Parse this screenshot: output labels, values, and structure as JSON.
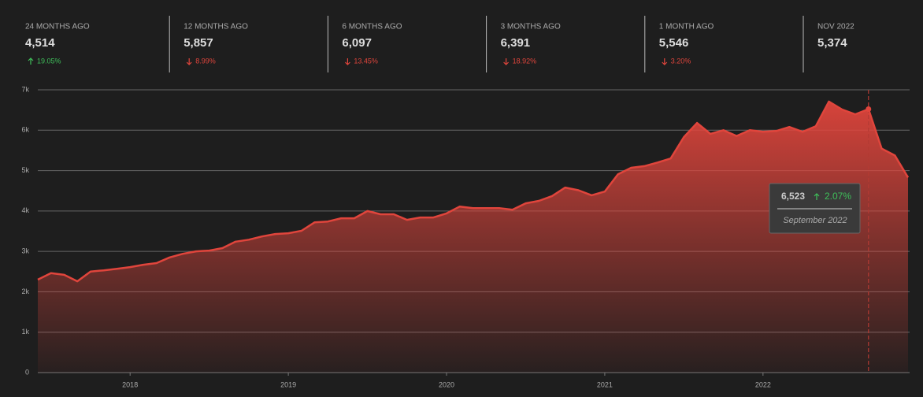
{
  "stats": [
    {
      "label": "24 MONTHS AGO",
      "value": "4,514",
      "change": "19.05%",
      "direction": "up"
    },
    {
      "label": "12 MONTHS AGO",
      "value": "5,857",
      "change": "8.99%",
      "direction": "down"
    },
    {
      "label": "6 MONTHS AGO",
      "value": "6,097",
      "change": "13.45%",
      "direction": "down"
    },
    {
      "label": "3 MONTHS AGO",
      "value": "6,391",
      "change": "18.92%",
      "direction": "down"
    },
    {
      "label": "1 MONTH AGO",
      "value": "5,546",
      "change": "3.20%",
      "direction": "down"
    },
    {
      "label": "NOV 2022",
      "value": "5,374"
    }
  ],
  "tooltip": {
    "value": "6,523",
    "change": "2.07%",
    "direction": "up",
    "date": "September 2022",
    "x": "2022-09"
  },
  "chart_data": {
    "type": "area",
    "grid": true,
    "x": [
      "2017-06",
      "2017-07",
      "2017-08",
      "2017-09",
      "2017-10",
      "2017-11",
      "2017-12",
      "2018-01",
      "2018-02",
      "2018-03",
      "2018-04",
      "2018-05",
      "2018-06",
      "2018-07",
      "2018-08",
      "2018-09",
      "2018-10",
      "2018-11",
      "2018-12",
      "2019-01",
      "2019-02",
      "2019-03",
      "2019-04",
      "2019-05",
      "2019-06",
      "2019-07",
      "2019-08",
      "2019-09",
      "2019-10",
      "2019-11",
      "2019-12",
      "2020-01",
      "2020-02",
      "2020-03",
      "2020-04",
      "2020-05",
      "2020-06",
      "2020-07",
      "2020-08",
      "2020-09",
      "2020-10",
      "2020-11",
      "2020-12",
      "2021-01",
      "2021-02",
      "2021-03",
      "2021-04",
      "2021-05",
      "2021-06",
      "2021-07",
      "2021-08",
      "2021-09",
      "2021-10",
      "2021-11",
      "2021-12",
      "2022-01",
      "2022-02",
      "2022-03",
      "2022-04",
      "2022-05",
      "2022-06",
      "2022-07",
      "2022-08",
      "2022-09",
      "2022-10",
      "2022-11",
      "2022-12"
    ],
    "series": [
      {
        "color": "#e0453c",
        "values": [
          2300,
          2460,
          2420,
          2260,
          2500,
          2530,
          2570,
          2610,
          2670,
          2710,
          2850,
          2940,
          3000,
          3020,
          3080,
          3240,
          3290,
          3370,
          3430,
          3450,
          3510,
          3720,
          3740,
          3820,
          3820,
          4000,
          3920,
          3920,
          3780,
          3840,
          3840,
          3940,
          4110,
          4070,
          4070,
          4070,
          4030,
          4190,
          4250,
          4370,
          4580,
          4514,
          4390,
          4480,
          4910,
          5070,
          5110,
          5200,
          5300,
          5830,
          6180,
          5910,
          6000,
          5857,
          6000,
          5960,
          5980,
          6080,
          5960,
          6097,
          6710,
          6510,
          6391,
          6523,
          5546,
          5374,
          4830
        ]
      }
    ],
    "xlim": [
      "2017-06",
      "2022-12"
    ],
    "xticks": [
      2018,
      2019,
      2020,
      2021,
      2022
    ],
    "ylim": [
      0,
      7000
    ],
    "yticks": [
      0,
      {
        "value": 1000,
        "label": "1k"
      },
      {
        "value": 2000,
        "label": "2k"
      },
      {
        "value": 3000,
        "label": "3k"
      },
      {
        "value": 4000,
        "label": "4k"
      },
      {
        "value": 5000,
        "label": "5k"
      },
      {
        "value": 6000,
        "label": "6k"
      },
      {
        "value": 7000,
        "label": "7k"
      }
    ]
  }
}
